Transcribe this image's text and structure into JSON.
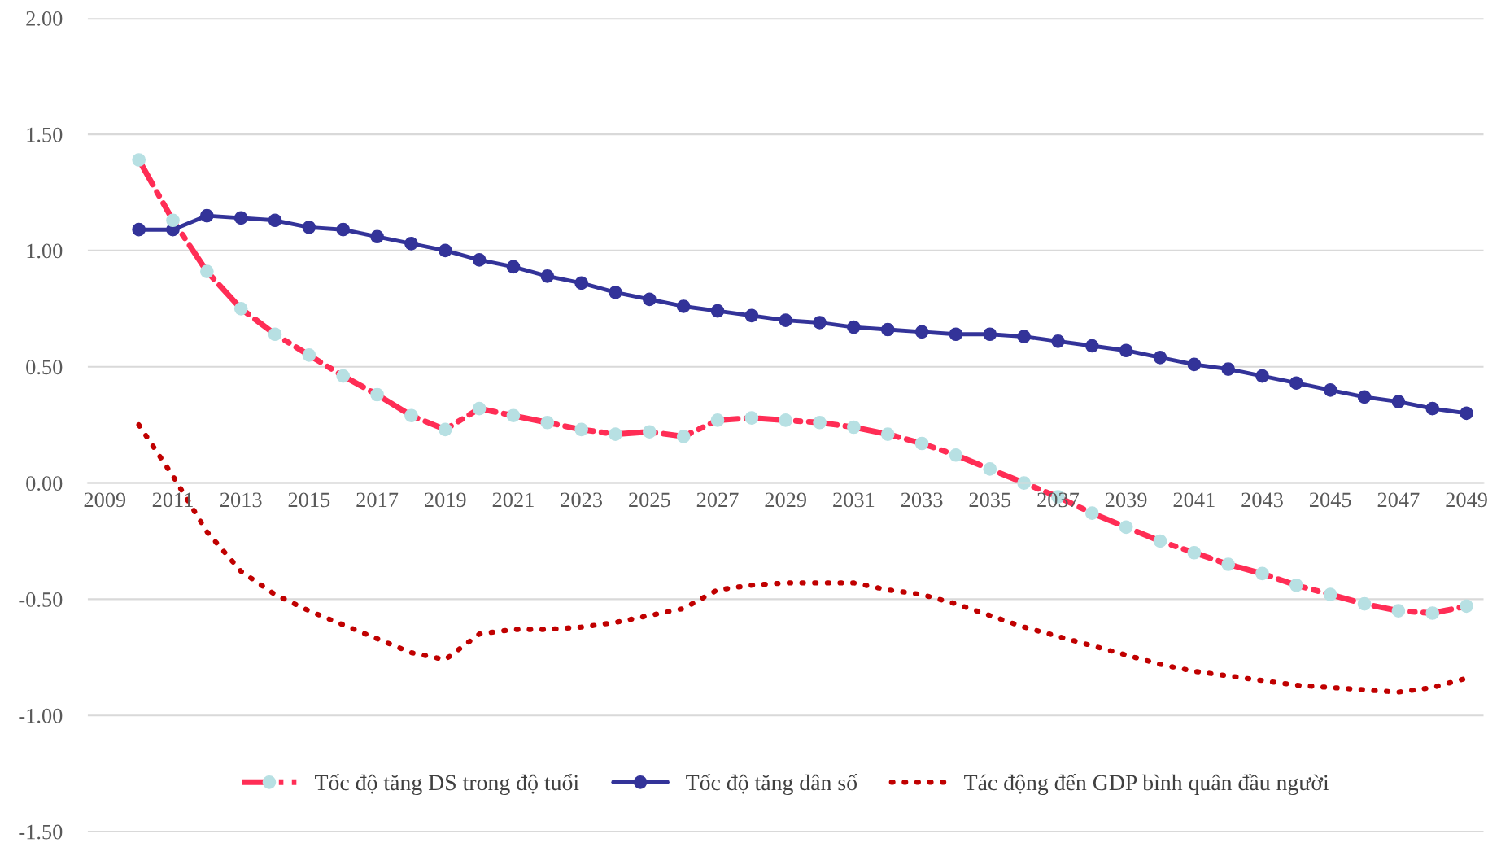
{
  "chart_data": {
    "type": "line",
    "categories": [
      "2009",
      null,
      "2011",
      null,
      "2013",
      null,
      "2015",
      null,
      "2017",
      null,
      "2019",
      null,
      "2021",
      null,
      "2023",
      null,
      "2025",
      null,
      "2027",
      null,
      "2029",
      null,
      "2031",
      null,
      "2033",
      null,
      "2035",
      null,
      "2037",
      null,
      "2039",
      null,
      "2041",
      null,
      "2043",
      null,
      "2045",
      null,
      "2047",
      null,
      "2049"
    ],
    "series": [
      {
        "name": "Tốc độ tăng DS trong độ tuổi",
        "color": "#ff2d55",
        "colors": [
          null,
          "#b7e0e3",
          "#b7e0e3",
          "#b7e0e3",
          "#b7e0e3",
          "#b7e0e3",
          "#b7e0e3",
          "#b7e0e3",
          "#b7e0e3",
          "#b7e0e3",
          "#b7e0e3",
          "#b7e0e3",
          "#b7e0e3",
          "#b7e0e3",
          "#b7e0e3",
          "#b7e0e3",
          "#b7e0e3",
          "#b7e0e3",
          "#b7e0e3",
          "#b7e0e3",
          "#b7e0e3",
          "#b7e0e3",
          "#b7e0e3",
          "#b7e0e3",
          "#b7e0e3",
          "#b7e0e3",
          "#b7e0e3",
          "#b7e0e3",
          "#b7e0e3",
          "#b7e0e3",
          "#b7e0e3",
          "#b7e0e3",
          "#b7e0e3",
          "#b7e0e3",
          "#b7e0e3",
          "#b7e0e3",
          "#b7e0e3",
          "#b7e0e3",
          "#b7e0e3",
          "#b7e0e3",
          "#b7e0e3"
        ],
        "marker": "circle",
        "line_style": "dashed",
        "values": [
          null,
          1.39,
          1.13,
          0.91,
          0.75,
          0.64,
          0.55,
          0.46,
          0.38,
          0.29,
          0.23,
          0.32,
          0.29,
          0.26,
          0.23,
          0.21,
          0.22,
          0.2,
          0.27,
          0.28,
          0.27,
          0.26,
          0.24,
          0.21,
          0.17,
          0.12,
          0.06,
          0.0,
          -0.06,
          -0.13,
          -0.19,
          -0.25,
          -0.3,
          -0.35,
          -0.39,
          -0.44,
          -0.48,
          -0.52,
          -0.55,
          -0.56,
          -0.53
        ]
      },
      {
        "name": "Tốc độ tăng dân số",
        "color": "#333399",
        "marker": "circle",
        "line_style": "solid",
        "values": [
          null,
          1.09,
          1.09,
          1.15,
          1.14,
          1.13,
          1.1,
          1.09,
          1.06,
          1.03,
          1.0,
          0.96,
          0.93,
          0.89,
          0.86,
          0.82,
          0.79,
          0.76,
          0.74,
          0.72,
          0.7,
          0.69,
          0.67,
          0.66,
          0.65,
          0.64,
          0.64,
          0.63,
          0.61,
          0.59,
          0.57,
          0.54,
          0.51,
          0.49,
          0.46,
          0.43,
          0.4,
          0.37,
          0.35,
          0.32,
          0.3
        ]
      },
      {
        "name": "Tác động đến GDP bình quân đầu người",
        "color": "#c00000",
        "marker": "none",
        "line_style": "dotted",
        "values": [
          null,
          0.25,
          0.03,
          -0.21,
          -0.38,
          -0.48,
          -0.55,
          -0.61,
          -0.67,
          -0.73,
          -0.76,
          -0.65,
          -0.63,
          -0.63,
          -0.62,
          -0.6,
          -0.57,
          -0.54,
          -0.46,
          -0.44,
          -0.43,
          -0.43,
          -0.43,
          -0.46,
          -0.48,
          -0.52,
          -0.57,
          -0.62,
          -0.66,
          -0.7,
          -0.74,
          -0.78,
          -0.81,
          -0.83,
          -0.85,
          -0.87,
          -0.88,
          -0.89,
          -0.9,
          -0.88,
          -0.84
        ]
      }
    ],
    "ylim": [
      -1.5,
      2.0
    ],
    "yticks": [
      {
        "value": -1.5,
        "label": "-1.50"
      },
      {
        "value": -1.0,
        "label": "-1.00"
      },
      {
        "value": -0.5,
        "label": "-0.50"
      },
      {
        "value": 0.0,
        "label": "0.00"
      },
      {
        "value": 0.5,
        "label": "0.50"
      },
      {
        "value": 1.0,
        "label": "1.00"
      },
      {
        "value": 1.5,
        "label": "1.50"
      },
      {
        "value": 2.0,
        "label": "2.00"
      }
    ],
    "grid": "y",
    "legend": "bottom"
  }
}
